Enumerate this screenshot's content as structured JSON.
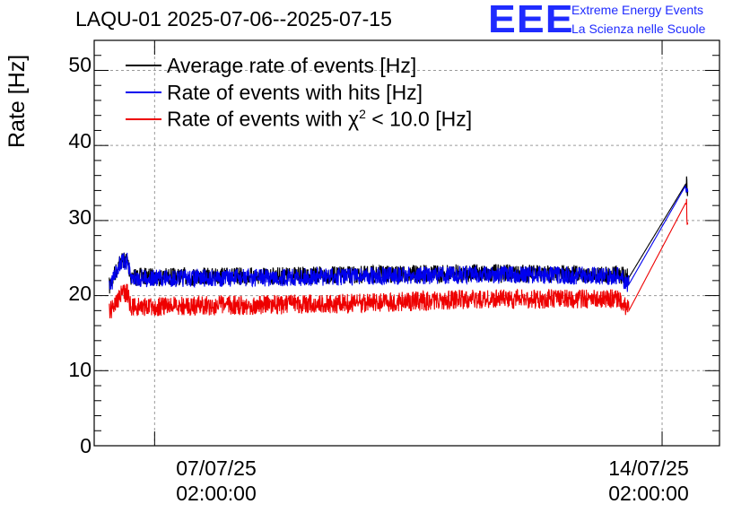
{
  "chart_data": {
    "type": "line",
    "title": "LAQU-01 2025-07-06--2025-07-15",
    "ylabel": "Rate [Hz]",
    "xlabel": "",
    "x_range": [
      "2025-07-06 06:00",
      "2025-07-14 21:00"
    ],
    "ylim": [
      0,
      54
    ],
    "y_ticks": [
      "0",
      "10",
      "20",
      "30",
      "40",
      "50"
    ],
    "x_ticks": [
      {
        "line1": "07/07/25",
        "line2": "02:00:00",
        "t": "2025-07-07 02:00"
      },
      {
        "line1": "14/07/25",
        "line2": "02:00:00",
        "t": "2025-07-14 02:00"
      }
    ],
    "grid": true,
    "legend_position": "top-left",
    "series": [
      {
        "name": "Average rate of events [Hz]",
        "color": "#000000",
        "points": [
          [
            "2025-07-06 11:00",
            21.2
          ],
          [
            "2025-07-06 14:30",
            24.5
          ],
          [
            "2025-07-06 17:00",
            24.8
          ],
          [
            "2025-07-06 18:00",
            22.5
          ],
          [
            "2025-07-07 12:00",
            22.5
          ],
          [
            "2025-07-09 12:00",
            22.7
          ],
          [
            "2025-07-11 12:00",
            23.0
          ],
          [
            "2025-07-13 12:00",
            22.8
          ],
          [
            "2025-07-13 15:00",
            22.4
          ],
          [
            "2025-07-14 10:00",
            35.0
          ],
          [
            "2025-07-14 10:30",
            34.0
          ]
        ]
      },
      {
        "name": "Rate of events with hits [Hz]",
        "color": "#0000ee",
        "points": [
          [
            "2025-07-06 11:00",
            21.0
          ],
          [
            "2025-07-06 14:30",
            24.3
          ],
          [
            "2025-07-06 17:00",
            24.6
          ],
          [
            "2025-07-06 18:00",
            22.3
          ],
          [
            "2025-07-07 12:00",
            22.3
          ],
          [
            "2025-07-09 12:00",
            22.5
          ],
          [
            "2025-07-11 12:00",
            22.8
          ],
          [
            "2025-07-13 12:00",
            22.6
          ],
          [
            "2025-07-13 15:00",
            21.5
          ],
          [
            "2025-07-14 10:00",
            34.8
          ],
          [
            "2025-07-14 10:30",
            33.8
          ]
        ]
      },
      {
        "name": "Rate of events with χ² < 10.0 [Hz]",
        "color": "#ee0000",
        "points": [
          [
            "2025-07-06 11:00",
            17.8
          ],
          [
            "2025-07-06 14:30",
            20.0
          ],
          [
            "2025-07-06 17:00",
            20.5
          ],
          [
            "2025-07-06 18:00",
            18.5
          ],
          [
            "2025-07-07 12:00",
            18.6
          ],
          [
            "2025-07-09 12:00",
            18.9
          ],
          [
            "2025-07-11 12:00",
            19.5
          ],
          [
            "2025-07-13 12:00",
            19.6
          ],
          [
            "2025-07-13 15:00",
            18.0
          ],
          [
            "2025-07-14 10:00",
            32.5
          ],
          [
            "2025-07-14 10:30",
            29.5
          ]
        ]
      }
    ]
  },
  "brand": {
    "logo": "EEE",
    "line1": "Extreme Energy Events",
    "line2": "La Scienza nelle Scuole",
    "color": "#1f2bff"
  },
  "legend": {
    "avg": "Average rate of events [Hz]",
    "hits": "Rate of events with hits [Hz]",
    "chi_prefix": "Rate of events with χ",
    "chi_sup": "2",
    "chi_suffix": " < 10.0 [Hz]"
  }
}
